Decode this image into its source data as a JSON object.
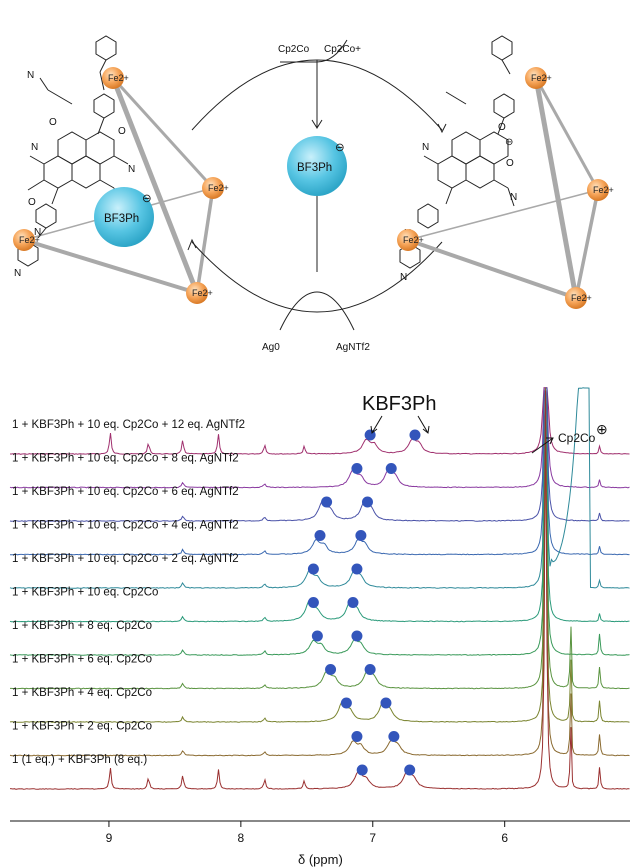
{
  "scheme": {
    "top_reagent_left": "Cp2Co",
    "top_reagent_right": "Cp2Co+",
    "bottom_left": "Ag0",
    "bottom_right": "AgNTf2",
    "anion_label": "BF3Ph",
    "anion_charge": "⊖",
    "fe_label": "Fe2+",
    "ammonium_charge": "⊕"
  },
  "spectra": {
    "kbf3ph_label": "KBF3Ph",
    "cp2co_label": "Cp2Co",
    "cp2co_charge": "⊕",
    "traces": [
      {
        "label": "1 + KBF3Ph + 10 eq. Cp2Co + 12 eq. AgNTf2",
        "color": "#a0306e",
        "dots": [
          7.02,
          6.68
        ]
      },
      {
        "label": "1 + KBF3Ph + 10 eq. Cp2Co + 8 eq. AgNTf2",
        "color": "#8a3aa0",
        "dots": [
          7.12,
          6.86
        ]
      },
      {
        "label": "1 + KBF3Ph + 10 eq. Cp2Co + 6 eq. AgNTf2",
        "color": "#4a52a8",
        "dots": [
          7.35,
          7.04
        ]
      },
      {
        "label": "1 + KBF3Ph + 10 eq. Cp2Co + 4 eq. AgNTf2",
        "color": "#3a68b0",
        "dots": [
          7.4,
          7.09
        ]
      },
      {
        "label": "1 + KBF3Ph + 10 eq. Cp2Co + 2 eq. AgNTf2",
        "color": "#2f8a9a",
        "dots": [
          7.45,
          7.12
        ]
      },
      {
        "label": "1 + KBF3Ph + 10 eq. Cp2Co",
        "color": "#2a9a7a",
        "dots": [
          7.45,
          7.15
        ]
      },
      {
        "label": "1 + KBF3Ph + 8 eq. Cp2Co",
        "color": "#3a9a5a",
        "dots": [
          7.42,
          7.12
        ]
      },
      {
        "label": "1 + KBF3Ph + 6 eq. Cp2Co",
        "color": "#5a9440",
        "dots": [
          7.32,
          7.02
        ]
      },
      {
        "label": "1 + KBF3Ph + 4 eq. Cp2Co",
        "color": "#7a8430",
        "dots": [
          7.2,
          6.9
        ]
      },
      {
        "label": "1 + KBF3Ph + 2 eq. Cp2Co",
        "color": "#8a6a30",
        "dots": [
          7.12,
          6.84
        ]
      },
      {
        "label": "1 (1 eq.) + KBF3Ph (8 eq.)",
        "color": "#9a3030",
        "dots": [
          7.08,
          6.72
        ]
      }
    ],
    "x_axis": {
      "label": "δ (ppm)",
      "ticks": [
        9,
        8,
        7,
        6
      ],
      "range": [
        9.75,
        5.05
      ]
    },
    "dot_color": "#3355bb"
  }
}
